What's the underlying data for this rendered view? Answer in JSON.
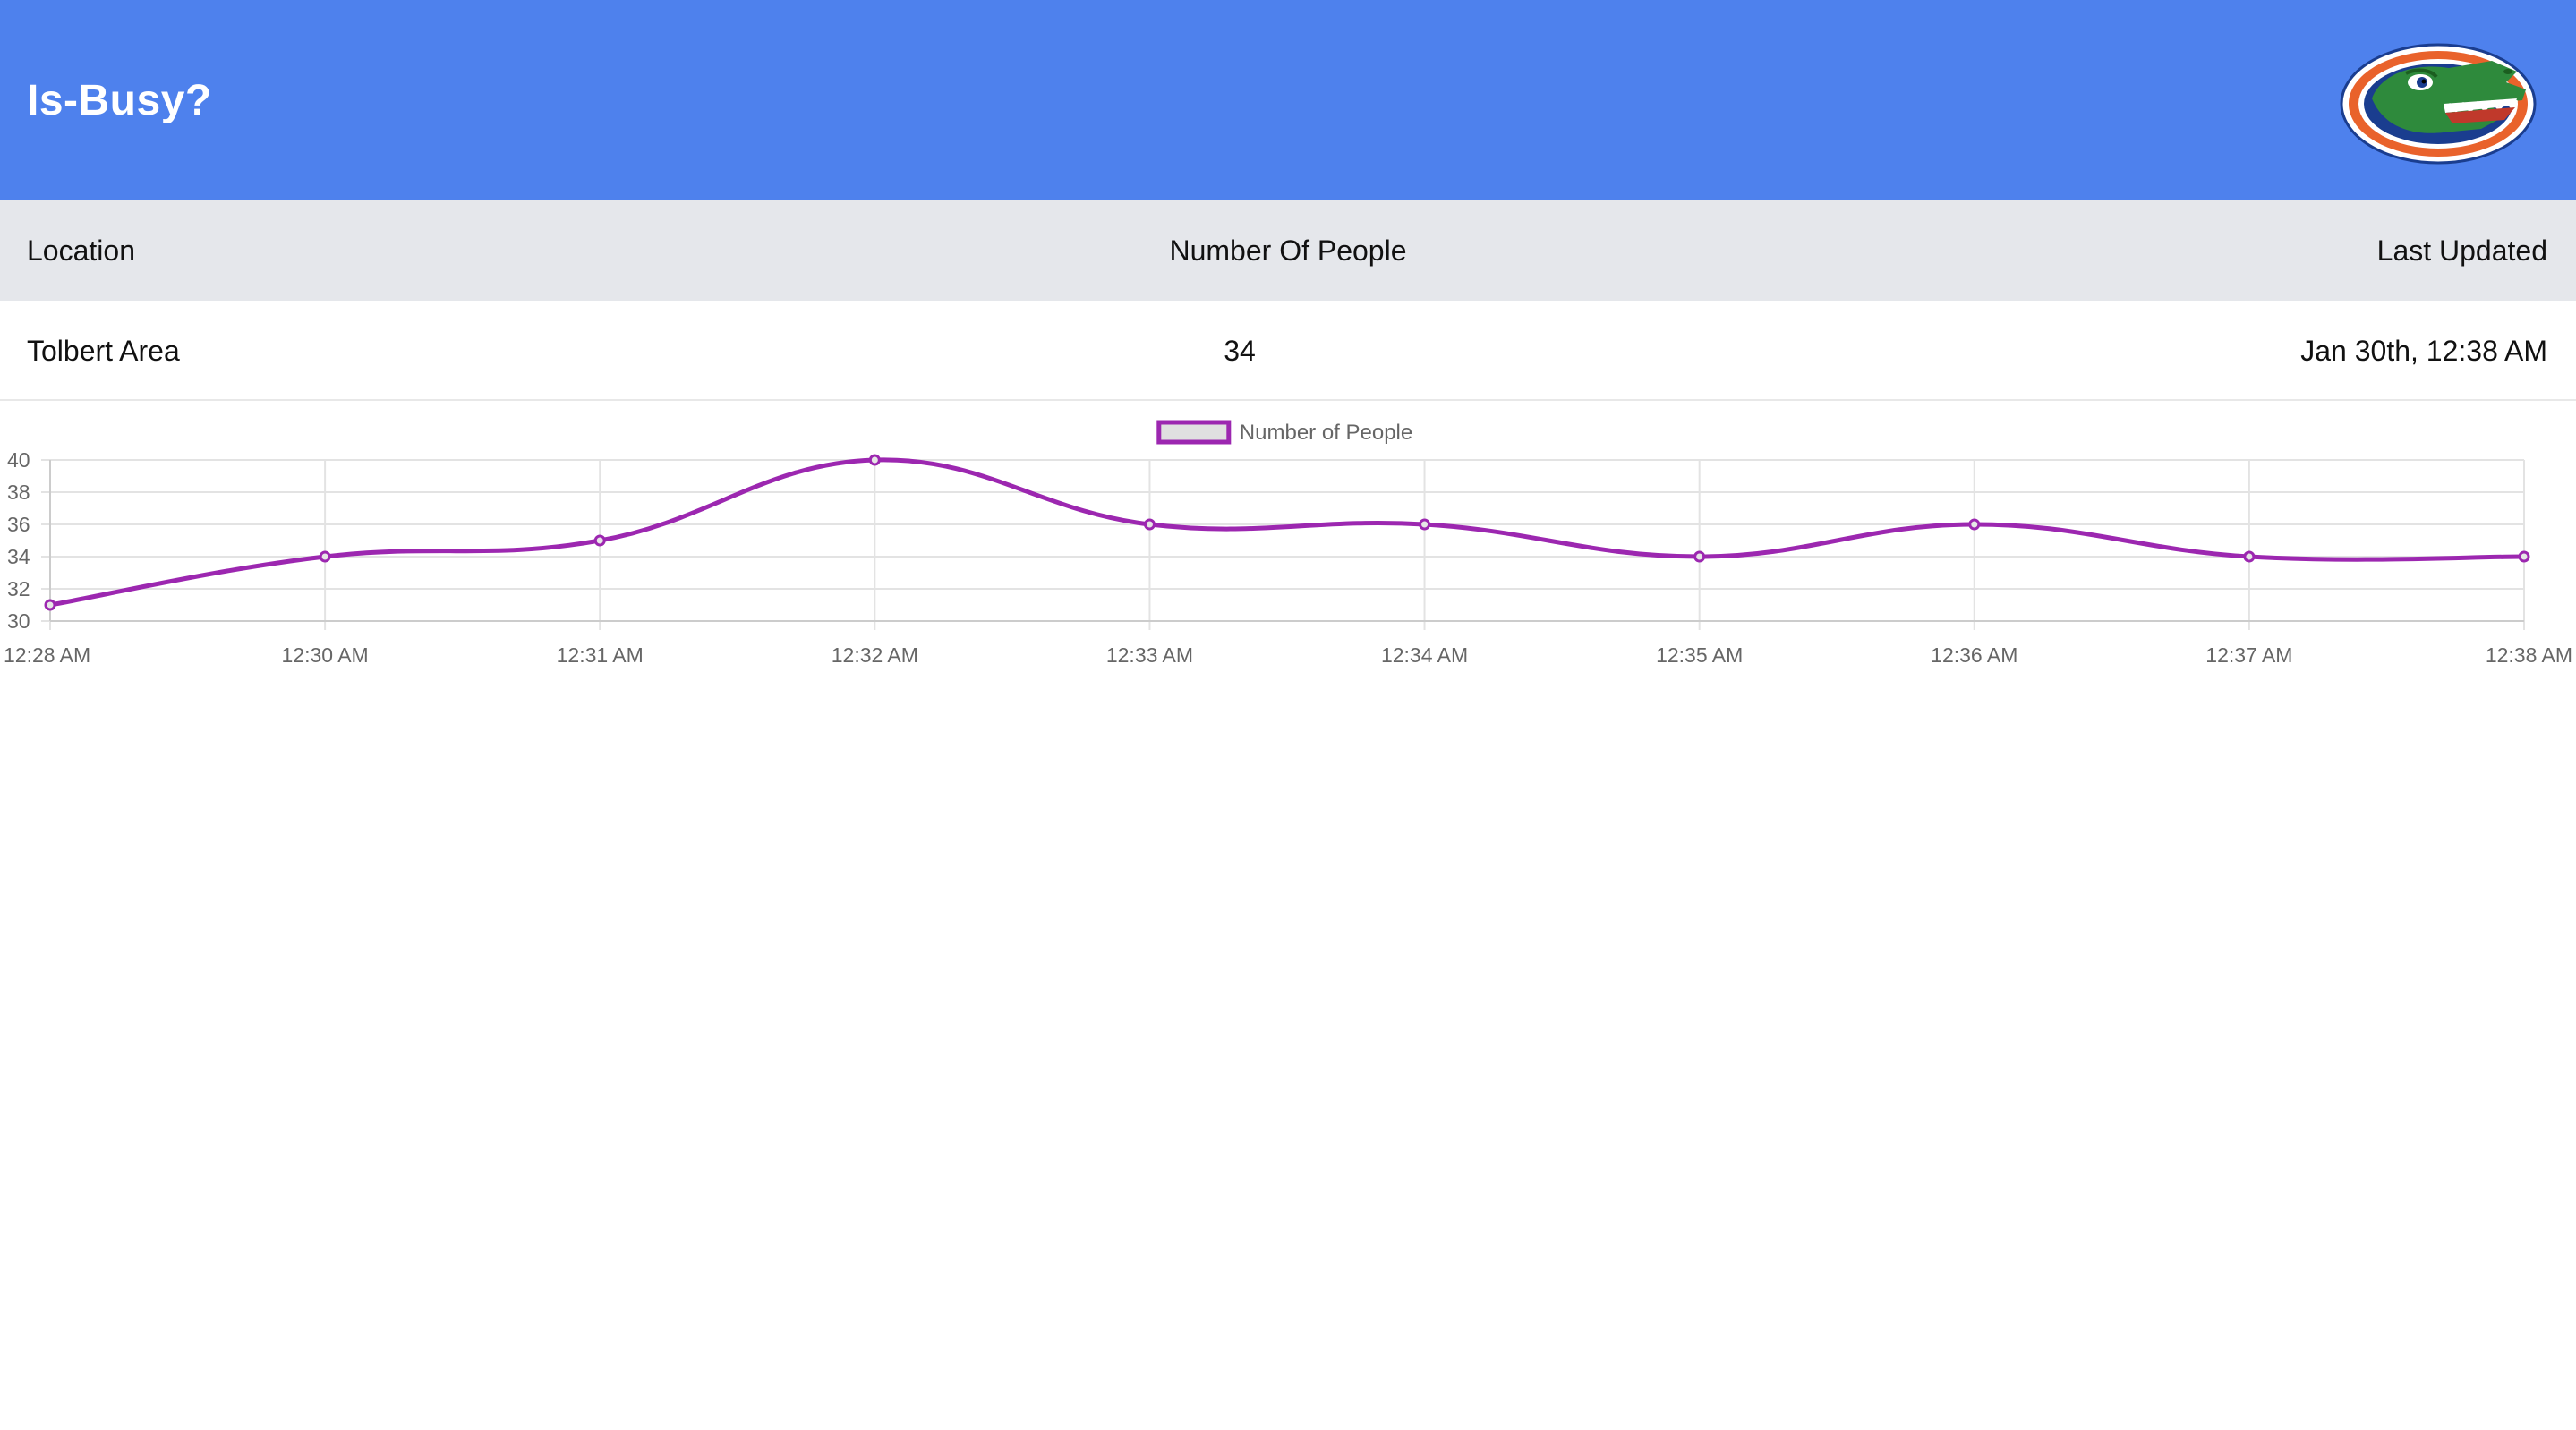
{
  "header": {
    "title": "Is-Busy?",
    "logo_icon": "florida-gator-logo",
    "background_color": "#4e81ed"
  },
  "table": {
    "columns": [
      "Location",
      "Number Of People",
      "Last Updated"
    ],
    "rows": [
      {
        "location": "Tolbert Area",
        "people": "34",
        "last_updated": "Jan 30th, 12:38 AM"
      }
    ]
  },
  "chart_data": {
    "type": "line",
    "categories": [
      "12:28 AM",
      "12:30 AM",
      "12:31 AM",
      "12:32 AM",
      "12:33 AM",
      "12:34 AM",
      "12:35 AM",
      "12:36 AM",
      "12:37 AM",
      "12:38 AM"
    ],
    "series": [
      {
        "name": "Number of People",
        "values": [
          31,
          34,
          35,
          40,
          36,
          36,
          34,
          36,
          34,
          34
        ],
        "color": "#9c27b0"
      }
    ],
    "yticks": [
      30,
      32,
      34,
      36,
      38,
      40
    ],
    "ylim": [
      30,
      40
    ],
    "grid": true,
    "legend": "top-center",
    "title": "",
    "xlabel": "",
    "ylabel": ""
  }
}
